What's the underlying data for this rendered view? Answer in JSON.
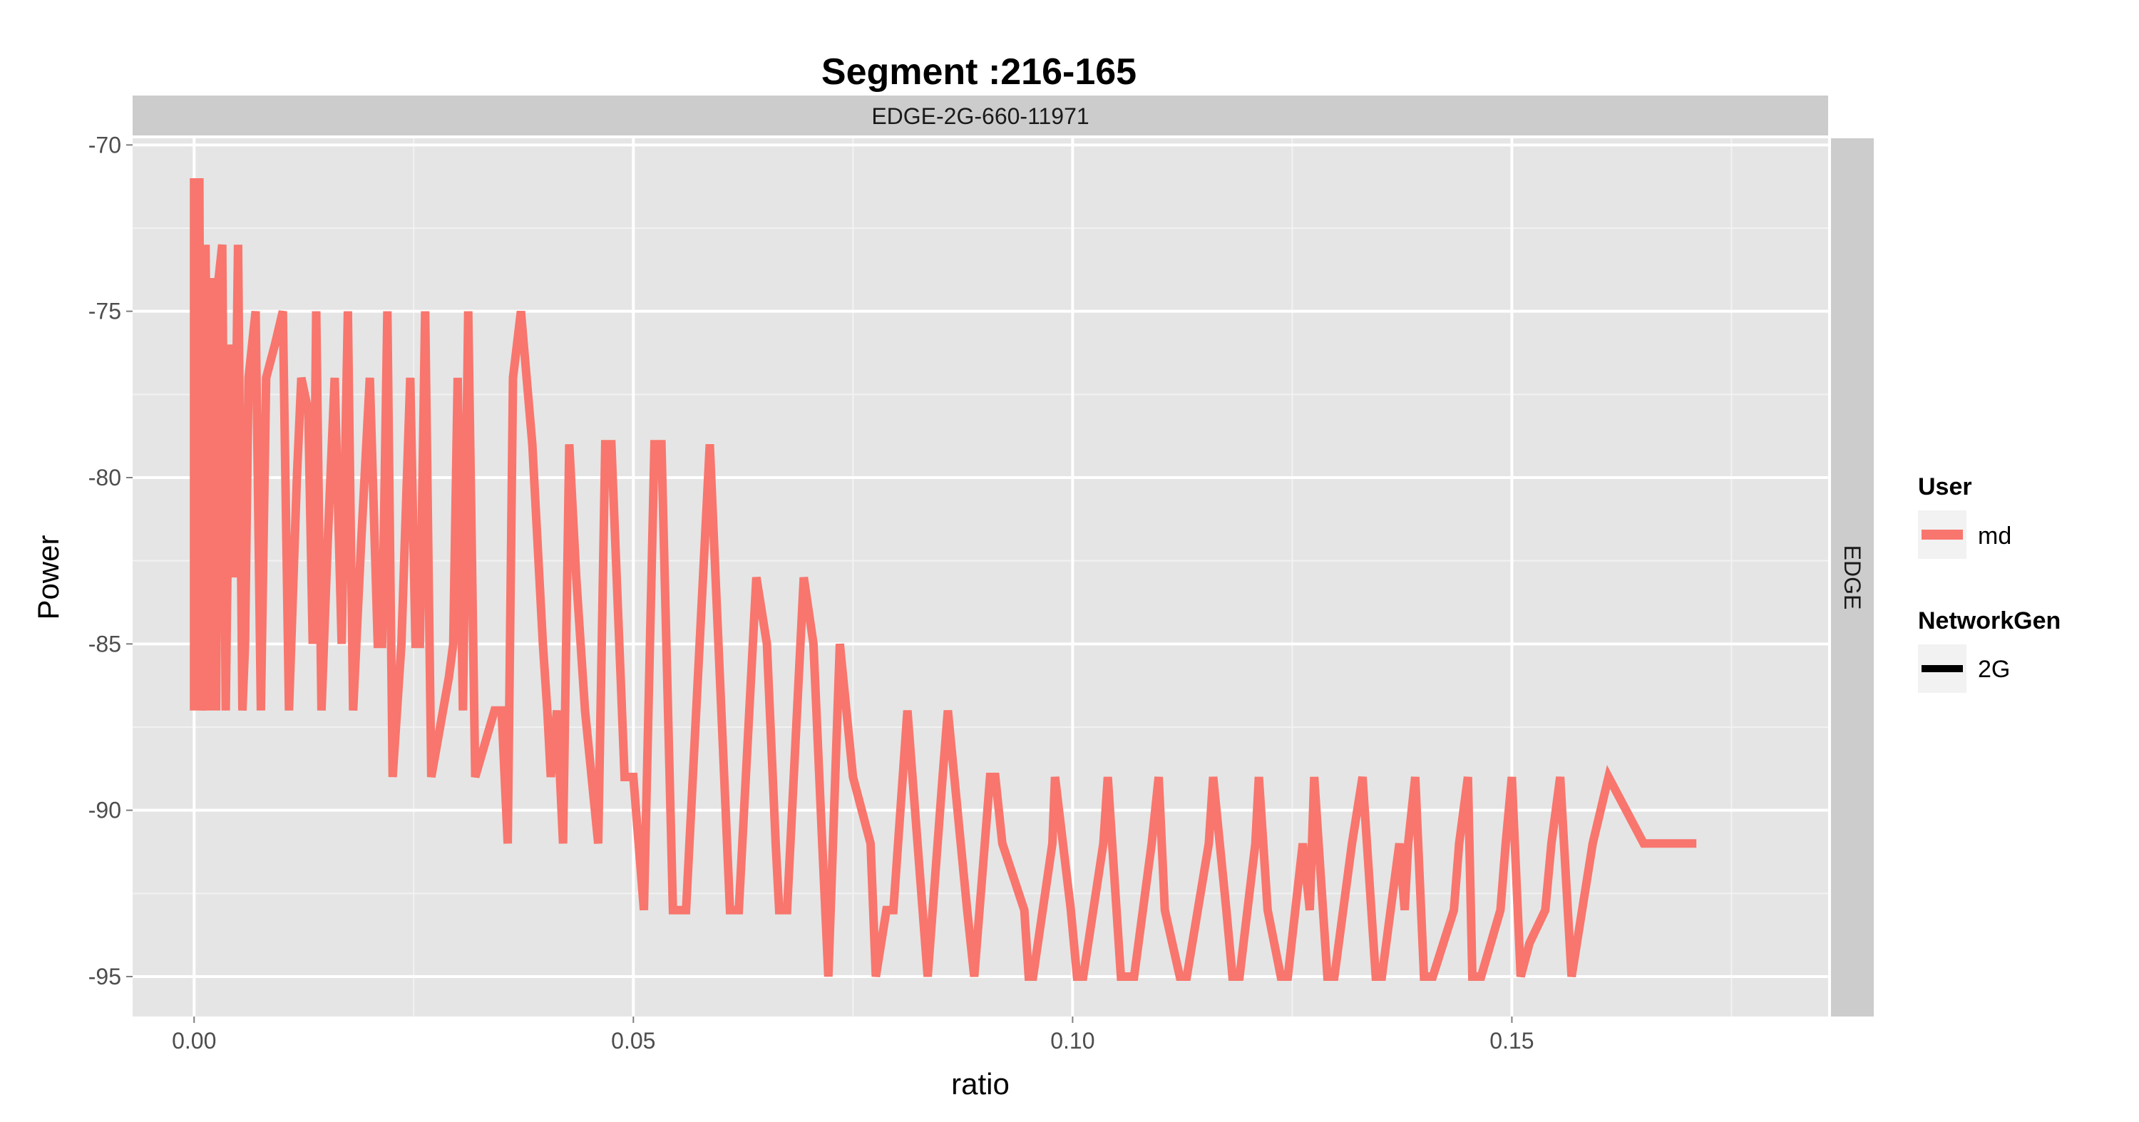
{
  "chart_data": {
    "type": "line",
    "title": "Segment :216-165",
    "facet_top": "EDGE-2G-660-11971",
    "facet_right": "EDGE",
    "xlabel": "ratio",
    "ylabel": "Power",
    "xlim": [
      -0.007,
      0.186
    ],
    "ylim": [
      -96.2,
      -69.8
    ],
    "x_ticks": [
      0.0,
      0.05,
      0.1,
      0.15
    ],
    "x_tick_labels": [
      "0.00",
      "0.05",
      "0.10",
      "0.15"
    ],
    "y_ticks": [
      -70,
      -75,
      -80,
      -85,
      -90,
      -95
    ],
    "y_tick_labels": [
      "-70",
      "-75",
      "-80",
      "-85",
      "-90",
      "-95"
    ],
    "grid": true,
    "legend": {
      "position": "right",
      "groups": [
        {
          "title": "User",
          "entries": [
            {
              "label": "md",
              "color": "#F8766D"
            }
          ]
        },
        {
          "title": "NetworkGen",
          "entries": [
            {
              "label": "2G",
              "color": "#000000"
            }
          ]
        }
      ]
    },
    "series": [
      {
        "name": "md",
        "color": "#F8766D",
        "points": [
          [
            0.0,
            -87
          ],
          [
            0.0,
            -71
          ],
          [
            0.0002,
            -87
          ],
          [
            0.0003,
            -71
          ],
          [
            0.0005,
            -87
          ],
          [
            0.0006,
            -71
          ],
          [
            0.0008,
            -87
          ],
          [
            0.0011,
            -85
          ],
          [
            0.0013,
            -73
          ],
          [
            0.0017,
            -87
          ],
          [
            0.002,
            -74
          ],
          [
            0.0025,
            -87
          ],
          [
            0.0028,
            -74
          ],
          [
            0.0032,
            -73
          ],
          [
            0.0036,
            -87
          ],
          [
            0.0041,
            -76
          ],
          [
            0.0045,
            -83
          ],
          [
            0.005,
            -73
          ],
          [
            0.0055,
            -87
          ],
          [
            0.0058,
            -85
          ],
          [
            0.0062,
            -77
          ],
          [
            0.007,
            -75
          ],
          [
            0.0076,
            -87
          ],
          [
            0.0082,
            -77
          ],
          [
            0.0092,
            -76
          ],
          [
            0.0101,
            -75
          ],
          [
            0.0108,
            -87
          ],
          [
            0.0117,
            -80
          ],
          [
            0.0122,
            -77
          ],
          [
            0.013,
            -78
          ],
          [
            0.0135,
            -85
          ],
          [
            0.0139,
            -75
          ],
          [
            0.0145,
            -87
          ],
          [
            0.0152,
            -82
          ],
          [
            0.016,
            -77
          ],
          [
            0.0168,
            -85
          ],
          [
            0.0175,
            -75
          ],
          [
            0.0181,
            -87
          ],
          [
            0.019,
            -82
          ],
          [
            0.02,
            -77
          ],
          [
            0.0209,
            -85
          ],
          [
            0.0214,
            -85
          ],
          [
            0.022,
            -75
          ],
          [
            0.0226,
            -89
          ],
          [
            0.0236,
            -85
          ],
          [
            0.0246,
            -77
          ],
          [
            0.0252,
            -85
          ],
          [
            0.0257,
            -85
          ],
          [
            0.0263,
            -75
          ],
          [
            0.027,
            -89
          ],
          [
            0.029,
            -86
          ],
          [
            0.0295,
            -85
          ],
          [
            0.03,
            -77
          ],
          [
            0.0306,
            -87
          ],
          [
            0.0312,
            -75
          ],
          [
            0.032,
            -89
          ],
          [
            0.0342,
            -87
          ],
          [
            0.035,
            -87
          ],
          [
            0.0357,
            -91
          ],
          [
            0.0363,
            -77
          ],
          [
            0.0372,
            -75
          ],
          [
            0.0385,
            -79
          ],
          [
            0.0397,
            -85
          ],
          [
            0.0402,
            -87
          ],
          [
            0.0406,
            -89
          ],
          [
            0.0413,
            -87
          ],
          [
            0.042,
            -91
          ],
          [
            0.0427,
            -79
          ],
          [
            0.0435,
            -83
          ],
          [
            0.0445,
            -87
          ],
          [
            0.046,
            -91
          ],
          [
            0.0468,
            -79
          ],
          [
            0.0475,
            -79
          ],
          [
            0.049,
            -89
          ],
          [
            0.05,
            -89
          ],
          [
            0.0512,
            -93
          ],
          [
            0.0524,
            -79
          ],
          [
            0.0532,
            -79
          ],
          [
            0.0545,
            -93
          ],
          [
            0.056,
            -93
          ],
          [
            0.0587,
            -79
          ],
          [
            0.061,
            -93
          ],
          [
            0.062,
            -93
          ],
          [
            0.064,
            -83
          ],
          [
            0.0652,
            -85
          ],
          [
            0.0662,
            -91
          ],
          [
            0.0666,
            -93
          ],
          [
            0.0675,
            -93
          ],
          [
            0.0694,
            -83
          ],
          [
            0.0705,
            -85
          ],
          [
            0.0715,
            -91
          ],
          [
            0.0722,
            -95
          ],
          [
            0.0735,
            -85
          ],
          [
            0.075,
            -89
          ],
          [
            0.077,
            -91
          ],
          [
            0.0776,
            -95
          ],
          [
            0.0788,
            -93
          ],
          [
            0.0796,
            -93
          ],
          [
            0.0812,
            -87
          ],
          [
            0.0835,
            -95
          ],
          [
            0.0852,
            -89
          ],
          [
            0.0858,
            -87
          ],
          [
            0.088,
            -93
          ],
          [
            0.0888,
            -95
          ],
          [
            0.0906,
            -89
          ],
          [
            0.0912,
            -89
          ],
          [
            0.092,
            -91
          ],
          [
            0.0945,
            -93
          ],
          [
            0.095,
            -95
          ],
          [
            0.0955,
            -95
          ],
          [
            0.0977,
            -91
          ],
          [
            0.098,
            -89
          ],
          [
            0.0998,
            -93
          ],
          [
            0.1005,
            -95
          ],
          [
            0.1012,
            -95
          ],
          [
            0.1035,
            -91
          ],
          [
            0.104,
            -89
          ],
          [
            0.1055,
            -95
          ],
          [
            0.107,
            -95
          ],
          [
            0.109,
            -91
          ],
          [
            0.1098,
            -89
          ],
          [
            0.1105,
            -93
          ],
          [
            0.1122,
            -95
          ],
          [
            0.113,
            -95
          ],
          [
            0.1155,
            -91
          ],
          [
            0.116,
            -89
          ],
          [
            0.1175,
            -93
          ],
          [
            0.1182,
            -95
          ],
          [
            0.119,
            -95
          ],
          [
            0.1208,
            -91
          ],
          [
            0.1212,
            -89
          ],
          [
            0.1222,
            -93
          ],
          [
            0.1237,
            -95
          ],
          [
            0.1245,
            -95
          ],
          [
            0.1262,
            -91
          ],
          [
            0.127,
            -93
          ],
          [
            0.1275,
            -89
          ],
          [
            0.129,
            -95
          ],
          [
            0.1298,
            -95
          ],
          [
            0.1318,
            -91
          ],
          [
            0.133,
            -89
          ],
          [
            0.1345,
            -95
          ],
          [
            0.1352,
            -95
          ],
          [
            0.1372,
            -91
          ],
          [
            0.1378,
            -93
          ],
          [
            0.1382,
            -91
          ],
          [
            0.139,
            -89
          ],
          [
            0.14,
            -95
          ],
          [
            0.141,
            -95
          ],
          [
            0.1434,
            -93
          ],
          [
            0.144,
            -91
          ],
          [
            0.145,
            -89
          ],
          [
            0.1455,
            -95
          ],
          [
            0.1465,
            -95
          ],
          [
            0.1487,
            -93
          ],
          [
            0.1493,
            -91
          ],
          [
            0.15,
            -89
          ],
          [
            0.151,
            -95
          ],
          [
            0.152,
            -94
          ],
          [
            0.1538,
            -93
          ],
          [
            0.1545,
            -91
          ],
          [
            0.1555,
            -89
          ],
          [
            0.1568,
            -95
          ],
          [
            0.1592,
            -91
          ],
          [
            0.161,
            -89
          ],
          [
            0.165,
            -91
          ],
          [
            0.171,
            -91
          ]
        ]
      }
    ]
  }
}
